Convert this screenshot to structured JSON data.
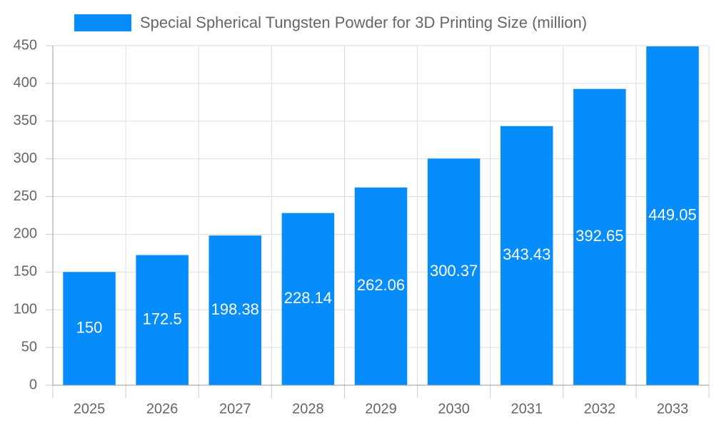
{
  "chart_data": {
    "type": "bar",
    "legend": "Special Spherical Tungsten Powder for 3D Printing Size (million)",
    "categories": [
      "2025",
      "2026",
      "2027",
      "2028",
      "2029",
      "2030",
      "2031",
      "2032",
      "2033"
    ],
    "values": [
      150,
      172.5,
      198.38,
      228.14,
      262.06,
      300.37,
      343.43,
      392.65,
      449.05
    ],
    "color": "#068cfb",
    "ylim": [
      0,
      450
    ],
    "yticks": [
      0,
      50,
      100,
      150,
      200,
      250,
      300,
      350,
      400,
      450
    ],
    "grid": true
  }
}
